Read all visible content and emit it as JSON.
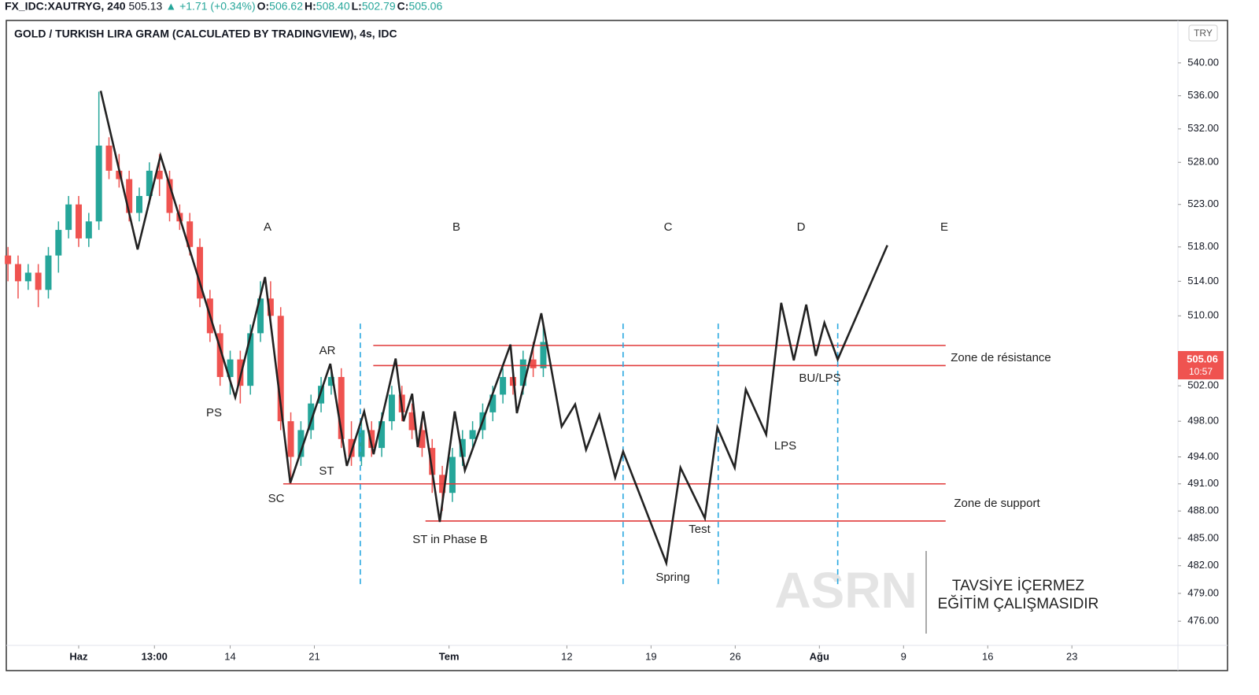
{
  "chart_data": {
    "type": "candlestick",
    "symbol": "FX_IDC:XAUTRYG, 240",
    "last": "505.13",
    "change": "▲ +1.71 (+0.34%)",
    "ohlc_labels": [
      "O:",
      "H:",
      "L:",
      "C:"
    ],
    "ohlc_values": [
      "506.62",
      "508.40",
      "502.79",
      "505.06"
    ],
    "title": "GOLD / TURKISH LIRA GRAM (CALCULATED BY TRADINGVIEW), 4s, IDC",
    "currency": "TRY",
    "price_tag": "505.06",
    "countdown": "10:57",
    "log_scale": true,
    "xlim": [
      -4.3,
      65.3
    ],
    "ylim": [
      473.4,
      545.2
    ],
    "xticks": [
      {
        "value": 0,
        "label": "Haz"
      },
      {
        "value": 4.5,
        "label": "13:00"
      },
      {
        "value": 9,
        "label": "14"
      },
      {
        "value": 14,
        "label": "21"
      },
      {
        "value": 22,
        "label": "Tem"
      },
      {
        "value": 29,
        "label": "12"
      },
      {
        "value": 34,
        "label": "19"
      },
      {
        "value": 39,
        "label": "26"
      },
      {
        "value": 44,
        "label": "Ağu"
      },
      {
        "value": 49,
        "label": "9"
      },
      {
        "value": 54,
        "label": "16"
      },
      {
        "value": 59,
        "label": "23"
      }
    ],
    "yticks": [
      {
        "value": 540,
        "label": "540.00"
      },
      {
        "value": 536,
        "label": "536.00"
      },
      {
        "value": 532,
        "label": "532.00"
      },
      {
        "value": 528,
        "label": "528.00"
      },
      {
        "value": 523,
        "label": "523.00"
      },
      {
        "value": 518,
        "label": "518.00"
      },
      {
        "value": 514,
        "label": "514.00"
      },
      {
        "value": 510,
        "label": "510.00"
      },
      {
        "value": 502,
        "label": "502.00"
      },
      {
        "value": 498,
        "label": "498.00"
      },
      {
        "value": 494,
        "label": "494.00"
      },
      {
        "value": 491,
        "label": "491.00"
      },
      {
        "value": 488,
        "label": "488.00"
      },
      {
        "value": 485,
        "label": "485.00"
      },
      {
        "value": 482,
        "label": "482.00"
      },
      {
        "value": 479,
        "label": "479.00"
      },
      {
        "value": 476,
        "label": "476.00"
      }
    ],
    "up_color": "#26a69a",
    "down_color": "#ef5350",
    "candles": {
      "x": [
        -4.2,
        -3.6,
        -3.0,
        -2.4,
        -1.8,
        -1.2,
        -0.6,
        0.0,
        0.6,
        1.2,
        1.8,
        2.4,
        3.0,
        3.6,
        4.2,
        4.8,
        5.4,
        6.0,
        6.6,
        7.2,
        7.8,
        8.4,
        9.0,
        9.6,
        10.2,
        10.8,
        11.4,
        12.0,
        12.6,
        13.2,
        13.8,
        14.4,
        15.0,
        15.6,
        16.2,
        16.8,
        17.4,
        18.0,
        18.6,
        19.2,
        19.8,
        20.4,
        21.0,
        21.6,
        22.2,
        22.8,
        23.4,
        24.0,
        24.6,
        25.2,
        25.8,
        26.4,
        27.0,
        27.6
      ],
      "open": [
        517,
        516,
        514,
        515,
        513,
        517,
        520,
        523,
        519,
        521,
        530,
        527,
        526,
        522,
        524,
        527,
        526,
        522,
        521,
        518,
        512,
        508,
        503,
        505,
        502,
        508,
        512,
        510,
        498,
        494,
        497,
        500,
        502,
        503,
        496,
        494,
        497,
        495,
        498,
        501,
        499,
        497,
        495,
        492,
        490,
        494,
        496,
        497,
        499,
        501,
        503,
        502,
        505,
        504
      ],
      "high": [
        518,
        517,
        516,
        516,
        518,
        521,
        524,
        524,
        522,
        536.5,
        531,
        529,
        527,
        525,
        528,
        529,
        527,
        523,
        522,
        519,
        513,
        509,
        506,
        506,
        509,
        514,
        514,
        511,
        499,
        498,
        501,
        503,
        504,
        504,
        498,
        498,
        498,
        499,
        502,
        502,
        500,
        498,
        496,
        493,
        495,
        497,
        498,
        500,
        502,
        504,
        504,
        506,
        507,
        509
      ],
      "low": [
        514,
        512,
        513,
        511,
        512,
        515,
        519,
        518,
        518,
        520,
        526,
        525,
        521,
        521,
        523,
        524,
        521,
        520,
        517,
        511,
        507,
        502,
        501,
        500,
        501,
        507,
        509,
        497,
        491,
        493,
        496,
        499,
        501,
        495,
        493,
        493,
        494,
        494,
        497,
        498,
        496,
        494,
        490,
        488,
        489,
        493,
        495,
        496,
        498,
        500,
        501,
        501,
        503,
        503
      ],
      "close": [
        516,
        514,
        515,
        513,
        517,
        520,
        523,
        519,
        521,
        530,
        527,
        526,
        522,
        524,
        527,
        526,
        522,
        521,
        518,
        512,
        508,
        503,
        505,
        502,
        508,
        512,
        510,
        498,
        494,
        497,
        500,
        502,
        503,
        496,
        494,
        497,
        495,
        498,
        501,
        499,
        497,
        495,
        492,
        490,
        494,
        496,
        497,
        499,
        501,
        503,
        502,
        505,
        504,
        507
      ]
    },
    "path": {
      "color": "#222222",
      "x": [
        1.31,
        3.5,
        4.86,
        9.3,
        11.07,
        12.57,
        14.95,
        15.93,
        16.96,
        17.52,
        18.83,
        19.3,
        19.81,
        20.14,
        20.47,
        21.45,
        22.34,
        22.94,
        25.65,
        26.03,
        27.48,
        28.69,
        29.49,
        30.14,
        30.93,
        31.87,
        32.34,
        34.91,
        35.75,
        37.2,
        37.94,
        38.97,
        39.63,
        40.84,
        41.73,
        42.48,
        43.22,
        43.79,
        44.3,
        45.09,
        48.04
      ],
      "values": [
        536.6,
        517.7,
        528.8,
        500.7,
        514.5,
        491.1,
        504.5,
        493.0,
        499.1,
        494.3,
        505.1,
        498.0,
        501.1,
        495.1,
        499.1,
        486.8,
        499.1,
        492.5,
        506.7,
        498.9,
        510.3,
        497.4,
        499.9,
        494.8,
        498.7,
        491.7,
        494.6,
        482.3,
        492.8,
        487.2,
        497.3,
        492.8,
        501.6,
        496.5,
        511.5,
        504.9,
        511.3,
        505.4,
        509.2,
        505.0,
        518.2
      ]
    },
    "level_color": "#e03a3a",
    "levels": [
      {
        "y": 506.6,
        "x": [
          17.5,
          51.5
        ]
      },
      {
        "y": 504.3,
        "x": [
          17.5,
          51.5
        ]
      },
      {
        "y": 491.0,
        "x": [
          12.15,
          51.5
        ]
      },
      {
        "y": 486.9,
        "x": [
          20.6,
          51.5
        ]
      }
    ],
    "divider_color": "#29a8e0",
    "dividers": [
      16.73,
      32.34,
      37.99,
      45.09
    ],
    "divider_range": [
      480.0,
      509.5
    ],
    "annotations": [
      "A",
      "B",
      "C",
      "D",
      "E",
      "PS",
      "SC",
      "AR",
      "ST",
      "ST in Phase B",
      "Spring",
      "Test",
      "LPS",
      "BU/LPS",
      "Zone de résistance",
      "Zone de support"
    ],
    "watermark": "ASRN",
    "disclaimer": [
      "TAVSİYE İÇERMEZ",
      "EĞİTİM ÇALIŞMASIDIR"
    ]
  }
}
